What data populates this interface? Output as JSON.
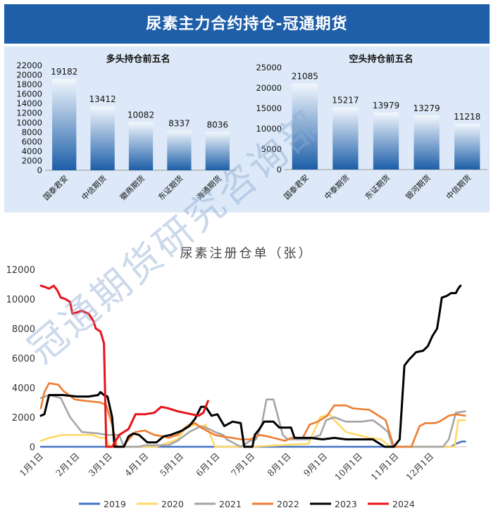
{
  "banner": {
    "title": "尿素主力合约持仓-冠通期货"
  },
  "long_chart": {
    "title": "多头持仓前五名",
    "categories": [
      "国泰君安",
      "中信期货",
      "徽商期货",
      "东证期货",
      "海通期货"
    ],
    "values": [
      19182,
      13412,
      10082,
      8337,
      8036
    ],
    "yticks": [
      0,
      2000,
      4000,
      6000,
      8000,
      10000,
      12000,
      14000,
      16000,
      18000,
      20000,
      22000
    ],
    "ylim": [
      0,
      22000
    ]
  },
  "short_chart": {
    "title": "空头持仓前五名",
    "categories": [
      "国泰君安",
      "中泰期货",
      "东证期货",
      "银河期货",
      "中信期货"
    ],
    "values": [
      21085,
      15217,
      13979,
      13279,
      11218
    ],
    "yticks": [
      0,
      5000,
      10000,
      15000,
      20000,
      25000
    ],
    "ylim": [
      0,
      25000
    ]
  },
  "watermark": "冠通期货研究咨询部",
  "chart_data": {
    "type": "line",
    "title": "尿素注册仓单（张）",
    "xlabel": "",
    "ylabel": "",
    "ylim": [
      0,
      12000
    ],
    "yticks": [
      0,
      2000,
      4000,
      6000,
      8000,
      10000,
      12000
    ],
    "x_ticks": [
      "1月1日",
      "2月1日",
      "3月1日",
      "4月1日",
      "5月1日",
      "6月1日",
      "7月1日",
      "8月1日",
      "9月1日",
      "10月1日",
      "11月1日",
      "12月1日"
    ],
    "x_unit": "day of year",
    "legend_position": "bottom",
    "colors": {
      "2019": "#4472c4",
      "2020": "#ffd966",
      "2021": "#a5a5a5",
      "2022": "#ed7d31",
      "2023": "#000000",
      "2024": "#e8111a"
    },
    "series": [
      {
        "name": "2019",
        "color": "#4472c4",
        "points": [
          [
            1,
            0
          ],
          [
            340,
            0
          ],
          [
            352,
            0
          ],
          [
            356,
            200
          ],
          [
            361,
            350
          ],
          [
            364,
            350
          ]
        ]
      },
      {
        "name": "2020",
        "color": "#ffd966",
        "points": [
          [
            1,
            400
          ],
          [
            8,
            600
          ],
          [
            20,
            800
          ],
          [
            45,
            800
          ],
          [
            52,
            600
          ],
          [
            56,
            600
          ],
          [
            60,
            0
          ],
          [
            100,
            0
          ],
          [
            118,
            500
          ],
          [
            125,
            1300
          ],
          [
            133,
            1500
          ],
          [
            138,
            1300
          ],
          [
            142,
            1500
          ],
          [
            147,
            600
          ],
          [
            150,
            0
          ],
          [
            180,
            0
          ],
          [
            230,
            200
          ],
          [
            240,
            2000
          ],
          [
            248,
            2200
          ],
          [
            252,
            1800
          ],
          [
            256,
            1500
          ],
          [
            262,
            1000
          ],
          [
            272,
            800
          ],
          [
            282,
            600
          ],
          [
            292,
            500
          ],
          [
            300,
            0
          ],
          [
            355,
            0
          ],
          [
            358,
            1800
          ],
          [
            364,
            1800
          ]
        ]
      },
      {
        "name": "2021",
        "color": "#a5a5a5",
        "points": [
          [
            1,
            3300
          ],
          [
            8,
            3500
          ],
          [
            18,
            3300
          ],
          [
            26,
            2000
          ],
          [
            31,
            1500
          ],
          [
            36,
            1000
          ],
          [
            50,
            900
          ],
          [
            58,
            800
          ],
          [
            68,
            800
          ],
          [
            72,
            0
          ],
          [
            85,
            0
          ],
          [
            90,
            100
          ],
          [
            110,
            100
          ],
          [
            118,
            400
          ],
          [
            128,
            1000
          ],
          [
            138,
            1400
          ],
          [
            145,
            1200
          ],
          [
            150,
            1000
          ],
          [
            157,
            800
          ],
          [
            160,
            500
          ],
          [
            172,
            0
          ],
          [
            180,
            400
          ],
          [
            185,
            500
          ],
          [
            190,
            1500
          ],
          [
            194,
            3200
          ],
          [
            200,
            3200
          ],
          [
            204,
            2000
          ],
          [
            208,
            800
          ],
          [
            212,
            500
          ],
          [
            230,
            500
          ],
          [
            240,
            800
          ],
          [
            245,
            1800
          ],
          [
            252,
            2000
          ],
          [
            262,
            1700
          ],
          [
            275,
            1700
          ],
          [
            285,
            1800
          ],
          [
            292,
            1400
          ],
          [
            298,
            1000
          ],
          [
            302,
            0
          ],
          [
            345,
            0
          ],
          [
            350,
            500
          ],
          [
            356,
            2300
          ],
          [
            364,
            2400
          ]
        ]
      },
      {
        "name": "2022",
        "color": "#ed7d31",
        "points": [
          [
            1,
            2600
          ],
          [
            4,
            3700
          ],
          [
            8,
            4300
          ],
          [
            16,
            4200
          ],
          [
            20,
            3800
          ],
          [
            30,
            3200
          ],
          [
            40,
            3100
          ],
          [
            52,
            3000
          ],
          [
            57,
            2800
          ],
          [
            62,
            1500
          ],
          [
            66,
            0
          ],
          [
            72,
            0
          ],
          [
            75,
            400
          ],
          [
            82,
            1000
          ],
          [
            90,
            1100
          ],
          [
            98,
            800
          ],
          [
            106,
            700
          ],
          [
            110,
            600
          ],
          [
            118,
            800
          ],
          [
            123,
            1200
          ],
          [
            128,
            1500
          ],
          [
            133,
            1600
          ],
          [
            138,
            1300
          ],
          [
            145,
            1000
          ],
          [
            150,
            800
          ],
          [
            156,
            700
          ],
          [
            165,
            600
          ],
          [
            172,
            500
          ],
          [
            180,
            500
          ],
          [
            188,
            800
          ],
          [
            195,
            700
          ],
          [
            205,
            500
          ],
          [
            210,
            400
          ],
          [
            215,
            600
          ],
          [
            225,
            600
          ],
          [
            231,
            1500
          ],
          [
            238,
            1700
          ],
          [
            246,
            2100
          ],
          [
            252,
            2800
          ],
          [
            262,
            2800
          ],
          [
            268,
            2600
          ],
          [
            282,
            2500
          ],
          [
            290,
            2100
          ],
          [
            296,
            1800
          ],
          [
            303,
            0
          ],
          [
            318,
            0
          ],
          [
            325,
            1400
          ],
          [
            330,
            1600
          ],
          [
            338,
            1600
          ],
          [
            342,
            1700
          ],
          [
            346,
            1900
          ],
          [
            350,
            2100
          ],
          [
            356,
            2200
          ],
          [
            364,
            2100
          ]
        ]
      },
      {
        "name": "2023",
        "color": "#000000",
        "points": [
          [
            1,
            2100
          ],
          [
            4,
            2200
          ],
          [
            8,
            3500
          ],
          [
            20,
            3500
          ],
          [
            32,
            3400
          ],
          [
            42,
            3400
          ],
          [
            50,
            3500
          ],
          [
            52,
            3700
          ],
          [
            55,
            3500
          ],
          [
            58,
            3400
          ],
          [
            62,
            2000
          ],
          [
            64,
            0
          ],
          [
            72,
            0
          ],
          [
            76,
            700
          ],
          [
            80,
            900
          ],
          [
            85,
            800
          ],
          [
            92,
            300
          ],
          [
            100,
            300
          ],
          [
            106,
            700
          ],
          [
            112,
            800
          ],
          [
            122,
            1100
          ],
          [
            128,
            1400
          ],
          [
            133,
            1900
          ],
          [
            138,
            2700
          ],
          [
            142,
            2700
          ],
          [
            147,
            2100
          ],
          [
            152,
            2200
          ],
          [
            158,
            1400
          ],
          [
            165,
            1700
          ],
          [
            172,
            1600
          ],
          [
            175,
            0
          ],
          [
            182,
            0
          ],
          [
            184,
            800
          ],
          [
            188,
            1200
          ],
          [
            192,
            1700
          ],
          [
            200,
            1700
          ],
          [
            205,
            1300
          ],
          [
            215,
            1300
          ],
          [
            218,
            600
          ],
          [
            232,
            600
          ],
          [
            242,
            500
          ],
          [
            252,
            600
          ],
          [
            262,
            500
          ],
          [
            285,
            500
          ],
          [
            295,
            0
          ],
          [
            303,
            0
          ],
          [
            308,
            500
          ],
          [
            312,
            5500
          ],
          [
            316,
            5900
          ],
          [
            322,
            6400
          ],
          [
            328,
            6500
          ],
          [
            332,
            6800
          ],
          [
            336,
            7500
          ],
          [
            340,
            8000
          ],
          [
            342,
            9000
          ],
          [
            344,
            10100
          ],
          [
            348,
            10200
          ],
          [
            352,
            10400
          ],
          [
            356,
            10400
          ],
          [
            358,
            10700
          ],
          [
            360,
            10900
          ]
        ]
      },
      {
        "name": "2024",
        "color": "#e8111a",
        "points": [
          [
            1,
            10900
          ],
          [
            5,
            10800
          ],
          [
            8,
            10700
          ],
          [
            12,
            10900
          ],
          [
            15,
            10600
          ],
          [
            18,
            10100
          ],
          [
            22,
            10000
          ],
          [
            26,
            9800
          ],
          [
            28,
            9000
          ],
          [
            32,
            9100
          ],
          [
            36,
            9200
          ],
          [
            42,
            9000
          ],
          [
            46,
            8500
          ],
          [
            48,
            8000
          ],
          [
            52,
            7800
          ],
          [
            55,
            7000
          ],
          [
            57,
            0
          ],
          [
            62,
            0
          ],
          [
            68,
            800
          ],
          [
            72,
            1000
          ],
          [
            76,
            1200
          ],
          [
            82,
            2200
          ],
          [
            90,
            2200
          ],
          [
            98,
            2300
          ],
          [
            104,
            2700
          ],
          [
            110,
            2600
          ],
          [
            118,
            2400
          ],
          [
            124,
            2300
          ],
          [
            130,
            2200
          ],
          [
            136,
            2100
          ],
          [
            140,
            2300
          ],
          [
            144,
            3100
          ]
        ]
      }
    ]
  }
}
